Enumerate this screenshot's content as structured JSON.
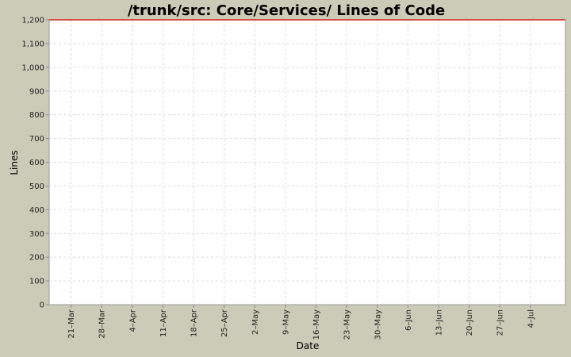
{
  "chart_data": {
    "type": "line",
    "title": "/trunk/src: Core/Services/ Lines of Code",
    "xlabel": "Date",
    "ylabel": "Lines",
    "ylim": [
      0,
      1200
    ],
    "y_ticks": [
      0,
      100,
      200,
      300,
      400,
      500,
      600,
      700,
      800,
      900,
      1000,
      1100,
      1200
    ],
    "y_tick_labels": [
      "0",
      "100",
      "200",
      "300",
      "400",
      "500",
      "600",
      "700",
      "800",
      "900",
      "1,000",
      "1,100",
      "1,200"
    ],
    "xlim": [
      "2008-03-16",
      "2008-07-12"
    ],
    "x_ticks": [
      "2008-03-21",
      "2008-03-28",
      "2008-04-04",
      "2008-04-11",
      "2008-04-18",
      "2008-04-25",
      "2008-05-02",
      "2008-05-09",
      "2008-05-16",
      "2008-05-23",
      "2008-05-30",
      "2008-06-06",
      "2008-06-13",
      "2008-06-20",
      "2008-06-27",
      "2008-07-04"
    ],
    "x_tick_labels": [
      "21–Mar",
      "28–Mar",
      "4–Apr",
      "11–Apr",
      "18–Apr",
      "25–Apr",
      "2–May",
      "9–May",
      "16–May",
      "23–May",
      "30–May",
      "6–Jun",
      "13–Jun",
      "20–Jun",
      "27–Jun",
      "4–Jul"
    ],
    "grid": true,
    "legend": "none",
    "series": [
      {
        "color": "#cc0000",
        "x": [
          "2008-03-16",
          "2008-07-12"
        ],
        "y": [
          1200,
          1200
        ]
      }
    ],
    "colors": {
      "background": "#cccbb8",
      "plot_background": "#ffffff",
      "grid": "#d9d9d9"
    }
  }
}
